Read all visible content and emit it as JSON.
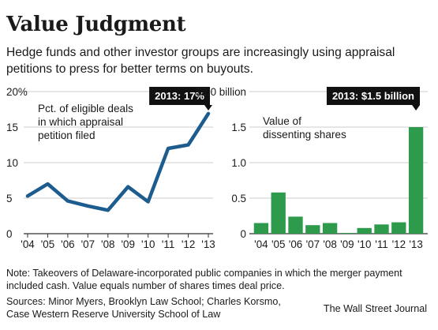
{
  "title": "Value Judgment",
  "subtitle": "Hedge funds and other investor groups are increasingly using appraisal petitions to press for better terms on buyouts.",
  "colors": {
    "line": "#1d5c8e",
    "bar": "#2d9a4c",
    "callout_bg": "#111111"
  },
  "chart_data": [
    {
      "type": "line",
      "annotation": "Pct. of eligible deals in which appraisal petition filed",
      "annotation_lines": [
        "Pct. of eligible deals",
        "in which appraisal",
        "petition filed"
      ],
      "callout": "2013: 17%",
      "categories": [
        "'04",
        "'05",
        "'06",
        "'07",
        "'08",
        "'09",
        "'10",
        "'11",
        "'12",
        "'13"
      ],
      "values": [
        5.3,
        7.0,
        4.6,
        3.9,
        3.3,
        6.6,
        4.5,
        12.0,
        12.5,
        16.9
      ],
      "yticks": [
        "20%",
        "15",
        "10",
        "5",
        "0"
      ],
      "ytick_values": [
        20,
        15,
        10,
        5,
        0
      ],
      "ylim": [
        0,
        20
      ],
      "grid": true
    },
    {
      "type": "bar",
      "annotation": "Value of dissenting shares",
      "annotation_lines": [
        "Value of",
        "dissenting shares"
      ],
      "callout": "2013: $1.5 billion",
      "categories": [
        "'04",
        "'05",
        "'06",
        "'07",
        "'08",
        "'09",
        "'10",
        "'11",
        "'12",
        "'13"
      ],
      "values": [
        0.15,
        0.58,
        0.24,
        0.12,
        0.15,
        0.01,
        0.08,
        0.13,
        0.16,
        1.5
      ],
      "yticks": [
        "$2.0 billion",
        "1.5",
        "1.0",
        "0.5",
        "0"
      ],
      "ytick_values": [
        2.0,
        1.5,
        1.0,
        0.5,
        0
      ],
      "ylim": [
        0,
        2.0
      ],
      "grid": true
    }
  ],
  "note": "Note: Takeovers of Delaware-incorporated public companies in which the merger payment included cash. Value equals number of shares times deal price.",
  "sources_lines": [
    "Sources: Minor Myers, Brooklyn Law School; Charles Korsmo,",
    "Case Western Reserve University School of Law"
  ],
  "credit": "The Wall Street Journal"
}
